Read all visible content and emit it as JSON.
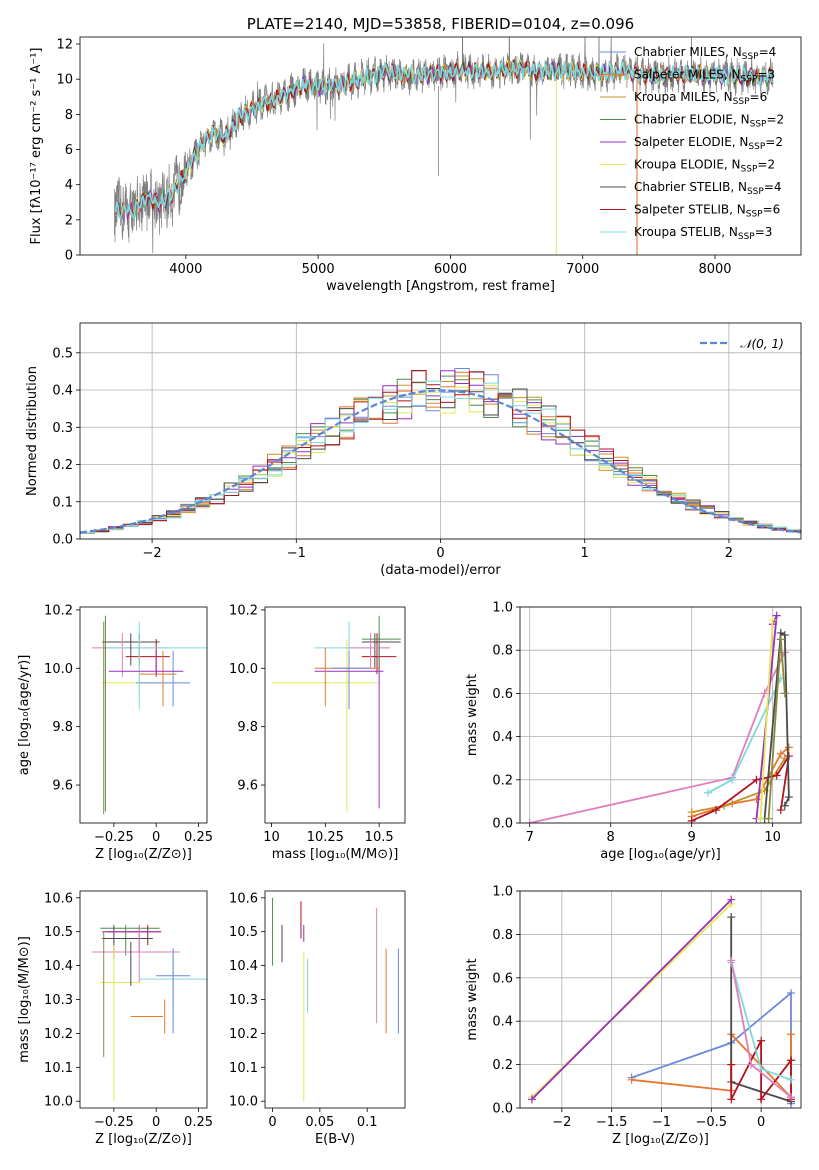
{
  "colors": {
    "Chabrier MILES": "#6a8bdc",
    "Salpeter MILES": "#e6772e",
    "Kroupa MILES": "#c8902a",
    "Chabrier ELODIE": "#4f8a4f",
    "Salpeter ELODIE": "#9a2fbf",
    "Kroupa ELODIE": "#e4e857",
    "Chabrier STELIB": "#4a4a4a",
    "Salpeter STELIB": "#b3121f",
    "Kroupa STELIB": "#7fd9dc",
    "Pink": "#e17fbd",
    "Olive": "#8a8a3a",
    "Observed": "#808080",
    "Normal": "#5b87d6"
  },
  "chart_data": [
    {
      "id": "spectrum",
      "type": "line",
      "title": "PLATE=2140, MJD=53858, FIBERID=0104, z=0.096",
      "xlabel": "wavelength [Angstrom, rest frame]",
      "ylabel": "Flux [fλ10⁻¹⁷ erg cm⁻² s⁻¹ A⁻¹]",
      "xlim": [
        3200,
        8650
      ],
      "ylim": [
        0,
        12.4
      ],
      "xticks": [
        "4000",
        "5000",
        "6000",
        "7000",
        "8000"
      ],
      "yticks": [
        "0",
        "2",
        "4",
        "6",
        "8",
        "10",
        "12"
      ],
      "grid": false,
      "legend_position": "upper-right",
      "series": [
        {
          "name": "Chabrier MILES, Nₛₚₚ=4",
          "legend": "Chabrier MILES, N",
          "nssp": "=4"
        },
        {
          "name": "Salpeter MILES, Nₛₚₚ=3",
          "legend": "Salpeter MILES, N",
          "nssp": "=3"
        },
        {
          "name": "Kroupa MILES, Nₛₚₚ=6",
          "legend": "Kroupa MILES, N",
          "nssp": "=6"
        },
        {
          "name": "Chabrier ELODIE, Nₛₚₚ=2",
          "legend": "Chabrier ELODIE, N",
          "nssp": "=2"
        },
        {
          "name": "Salpeter ELODIE, Nₛₚₚ=2",
          "legend": "Salpeter ELODIE, N",
          "nssp": "=2"
        },
        {
          "name": "Kroupa ELODIE, Nₛₚₚ=2",
          "legend": "Kroupa ELODIE, N",
          "nssp": "=2"
        },
        {
          "name": "Chabrier STELIB, Nₛₚₚ=4",
          "legend": "Chabrier STELIB, N",
          "nssp": "=4"
        },
        {
          "name": "Salpeter STELIB, Nₛₚₚ=6",
          "legend": "Salpeter STELIB, N",
          "nssp": "=6"
        },
        {
          "name": "Kroupa STELIB, Nₛₚₚ=3",
          "legend": "Kroupa STELIB, N",
          "nssp": "=3"
        }
      ],
      "model_x": [
        3470,
        3600,
        3700,
        3800,
        3900,
        4000,
        4100,
        4200,
        4300,
        4400,
        4500,
        4700,
        4900,
        5100,
        5300,
        5500,
        5700,
        5900,
        6100,
        6300,
        6500,
        6700,
        6900,
        7100,
        7300,
        7500,
        7800,
        8100,
        8400
      ],
      "model_y": [
        2.6,
        2.5,
        3.3,
        2.9,
        3.5,
        4.7,
        6.0,
        7.0,
        6.7,
        7.8,
        8.3,
        8.9,
        9.7,
        9.5,
        10.0,
        10.4,
        10.2,
        10.3,
        10.5,
        10.4,
        10.6,
        10.4,
        10.5,
        10.3,
        10.5,
        10.2,
        10.3,
        10.2,
        10.1
      ]
    },
    {
      "id": "residuals",
      "type": "histogram",
      "xlabel": "(data-model)/error",
      "ylabel": "Normed distribution",
      "xlim": [
        -2.5,
        2.5
      ],
      "ylim": [
        0,
        0.58
      ],
      "xticks": [
        -2,
        -1,
        0,
        1,
        2
      ],
      "yticks": [
        0.0,
        0.1,
        0.2,
        0.3,
        0.4,
        0.5
      ],
      "grid": true,
      "legend_position": "upper-right",
      "reference_curve": "𝒩(0, 1)",
      "bin_width": 0.1
    },
    {
      "id": "z-age",
      "type": "errorbar",
      "xlabel": "Z [log₁₀(Z/Z⊙)]",
      "ylabel": "age  [log₁₀(age/yr)]",
      "xlim": [
        -0.45,
        0.3
      ],
      "ylim": [
        9.47,
        10.21
      ],
      "xticks": [
        -0.25,
        0.0,
        0.25
      ],
      "yticks": [
        9.6,
        9.8,
        10.0,
        10.2
      ]
    },
    {
      "id": "mass-age",
      "type": "errorbar",
      "xlabel": "mass [log₁₀(M/M⊙)]",
      "ylabel": "",
      "xlim": [
        9.97,
        10.62
      ],
      "ylim": [
        9.47,
        10.21
      ],
      "xticks": [
        10.0,
        10.25,
        10.5
      ],
      "yticks": [
        9.6,
        9.8,
        10.0,
        10.2
      ]
    },
    {
      "id": "age-weight",
      "type": "line",
      "xlabel": "age  [log₁₀(age/yr)]",
      "ylabel": "mass weight",
      "xlim": [
        6.88,
        10.35
      ],
      "ylim": [
        0,
        1.0
      ],
      "xticks": [
        7,
        8,
        9,
        10
      ],
      "yticks": [
        0.0,
        0.2,
        0.4,
        0.6,
        0.8,
        1.0
      ],
      "grid": true
    },
    {
      "id": "z-mass",
      "type": "errorbar",
      "xlabel": "Z [log₁₀(Z/Z⊙)]",
      "ylabel": "mass [log₁₀(M/M⊙)]",
      "xlim": [
        -0.45,
        0.3
      ],
      "ylim": [
        9.98,
        10.62
      ],
      "xticks": [
        -0.25,
        0.0,
        0.25
      ],
      "yticks": [
        10.0,
        10.1,
        10.2,
        10.3,
        10.4,
        10.5,
        10.6
      ]
    },
    {
      "id": "ebv-mass",
      "type": "errorbar",
      "xlabel": "E(B-V)",
      "ylabel": "",
      "xlim": [
        -0.008,
        0.14
      ],
      "ylim": [
        9.98,
        10.62
      ],
      "xticks": [
        0.0,
        0.05,
        0.1
      ],
      "yticks": [
        10.0,
        10.1,
        10.2,
        10.3,
        10.4,
        10.5,
        10.6
      ]
    },
    {
      "id": "z-weight",
      "type": "line",
      "xlabel": "Z [log₁₀(Z/Z⊙)]",
      "ylabel": "mass weight",
      "xlim": [
        -2.42,
        0.4
      ],
      "ylim": [
        0,
        1.0
      ],
      "xticks": [
        -2.0,
        -1.5,
        -1.0,
        -0.5,
        0.0
      ],
      "yticks": [
        0.0,
        0.2,
        0.4,
        0.6,
        0.8,
        1.0
      ],
      "grid": true
    }
  ]
}
